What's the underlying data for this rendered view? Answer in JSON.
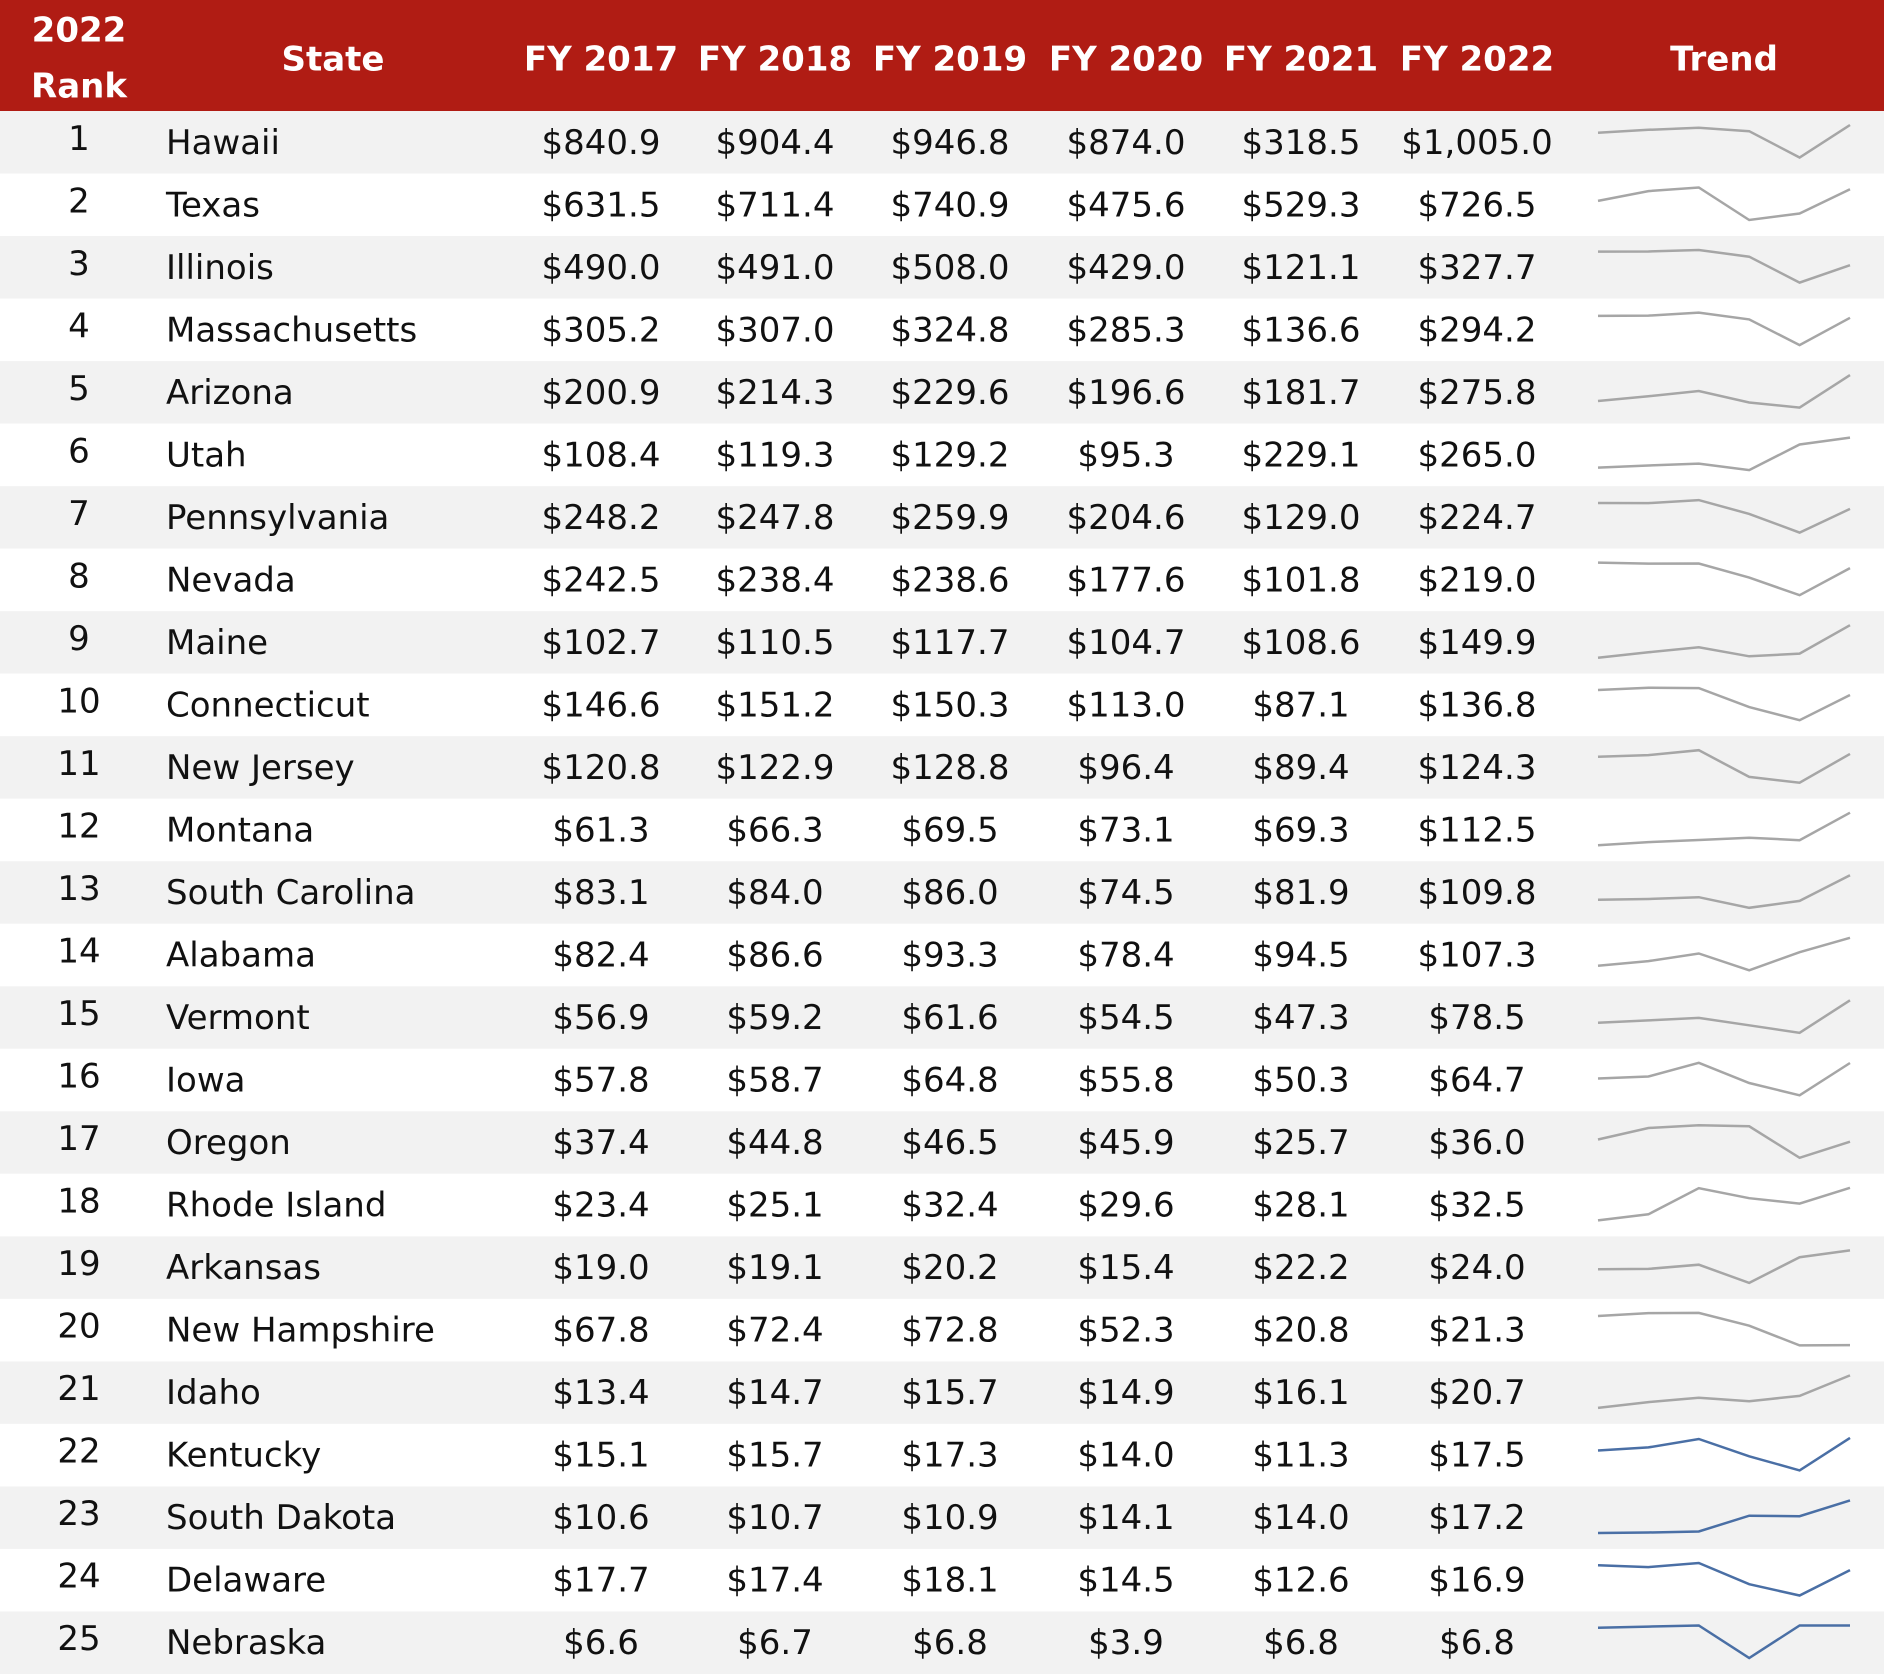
{
  "header": {
    "rank_lines": [
      "2022",
      "Rank"
    ],
    "state": "State",
    "years": [
      "FY 2017",
      "FY 2018",
      "FY 2019",
      "FY 2020",
      "FY 2021",
      "FY 2022"
    ],
    "trend": "Trend"
  },
  "rows": [
    {
      "rank": 1,
      "state": "Hawaii",
      "values": [
        840.9,
        904.4,
        946.8,
        874.0,
        318.5,
        1005.0
      ],
      "value_labels": [
        "$840.9",
        "$904.4",
        "$946.8",
        "$874.0",
        "$318.5",
        "$1,005.0"
      ],
      "trend_color": "#a6a6a6"
    },
    {
      "rank": 2,
      "state": "Texas",
      "values": [
        631.5,
        711.4,
        740.9,
        475.6,
        529.3,
        726.5
      ],
      "value_labels": [
        "$631.5",
        "$711.4",
        "$740.9",
        "$475.6",
        "$529.3",
        "$726.5"
      ],
      "trend_color": "#a6a6a6"
    },
    {
      "rank": 3,
      "state": "Illinois",
      "values": [
        490.0,
        491.0,
        508.0,
        429.0,
        121.1,
        327.7
      ],
      "value_labels": [
        "$490.0",
        "$491.0",
        "$508.0",
        "$429.0",
        "$121.1",
        "$327.7"
      ],
      "trend_color": "#a6a6a6"
    },
    {
      "rank": 4,
      "state": "Massachusetts",
      "values": [
        305.2,
        307.0,
        324.8,
        285.3,
        136.6,
        294.2
      ],
      "value_labels": [
        "$305.2",
        "$307.0",
        "$324.8",
        "$285.3",
        "$136.6",
        "$294.2"
      ],
      "trend_color": "#a6a6a6"
    },
    {
      "rank": 5,
      "state": "Arizona",
      "values": [
        200.9,
        214.3,
        229.6,
        196.6,
        181.7,
        275.8
      ],
      "value_labels": [
        "$200.9",
        "$214.3",
        "$229.6",
        "$196.6",
        "$181.7",
        "$275.8"
      ],
      "trend_color": "#a6a6a6"
    },
    {
      "rank": 6,
      "state": "Utah",
      "values": [
        108.4,
        119.3,
        129.2,
        95.3,
        229.1,
        265.0
      ],
      "value_labels": [
        "$108.4",
        "$119.3",
        "$129.2",
        "$95.3",
        "$229.1",
        "$265.0"
      ],
      "trend_color": "#a6a6a6"
    },
    {
      "rank": 7,
      "state": "Pennsylvania",
      "values": [
        248.2,
        247.8,
        259.9,
        204.6,
        129.0,
        224.7
      ],
      "value_labels": [
        "$248.2",
        "$247.8",
        "$259.9",
        "$204.6",
        "$129.0",
        "$224.7"
      ],
      "trend_color": "#a6a6a6"
    },
    {
      "rank": 8,
      "state": "Nevada",
      "values": [
        242.5,
        238.4,
        238.6,
        177.6,
        101.8,
        219.0
      ],
      "value_labels": [
        "$242.5",
        "$238.4",
        "$238.6",
        "$177.6",
        "$101.8",
        "$219.0"
      ],
      "trend_color": "#a6a6a6"
    },
    {
      "rank": 9,
      "state": "Maine",
      "values": [
        102.7,
        110.5,
        117.7,
        104.7,
        108.6,
        149.9
      ],
      "value_labels": [
        "$102.7",
        "$110.5",
        "$117.7",
        "$104.7",
        "$108.6",
        "$149.9"
      ],
      "trend_color": "#a6a6a6"
    },
    {
      "rank": 10,
      "state": "Connecticut",
      "values": [
        146.6,
        151.2,
        150.3,
        113.0,
        87.1,
        136.8
      ],
      "value_labels": [
        "$146.6",
        "$151.2",
        "$150.3",
        "$113.0",
        "$87.1",
        "$136.8"
      ],
      "trend_color": "#a6a6a6"
    },
    {
      "rank": 11,
      "state": "New Jersey",
      "values": [
        120.8,
        122.9,
        128.8,
        96.4,
        89.4,
        124.3
      ],
      "value_labels": [
        "$120.8",
        "$122.9",
        "$128.8",
        "$96.4",
        "$89.4",
        "$124.3"
      ],
      "trend_color": "#a6a6a6"
    },
    {
      "rank": 12,
      "state": "Montana",
      "values": [
        61.3,
        66.3,
        69.5,
        73.1,
        69.3,
        112.5
      ],
      "value_labels": [
        "$61.3",
        "$66.3",
        "$69.5",
        "$73.1",
        "$69.3",
        "$112.5"
      ],
      "trend_color": "#a6a6a6"
    },
    {
      "rank": 13,
      "state": "South Carolina",
      "values": [
        83.1,
        84.0,
        86.0,
        74.5,
        81.9,
        109.8
      ],
      "value_labels": [
        "$83.1",
        "$84.0",
        "$86.0",
        "$74.5",
        "$81.9",
        "$109.8"
      ],
      "trend_color": "#a6a6a6"
    },
    {
      "rank": 14,
      "state": "Alabama",
      "values": [
        82.4,
        86.6,
        93.3,
        78.4,
        94.5,
        107.3
      ],
      "value_labels": [
        "$82.4",
        "$86.6",
        "$93.3",
        "$78.4",
        "$94.5",
        "$107.3"
      ],
      "trend_color": "#a6a6a6"
    },
    {
      "rank": 15,
      "state": "Vermont",
      "values": [
        56.9,
        59.2,
        61.6,
        54.5,
        47.3,
        78.5
      ],
      "value_labels": [
        "$56.9",
        "$59.2",
        "$61.6",
        "$54.5",
        "$47.3",
        "$78.5"
      ],
      "trend_color": "#a6a6a6"
    },
    {
      "rank": 16,
      "state": "Iowa",
      "values": [
        57.8,
        58.7,
        64.8,
        55.8,
        50.3,
        64.7
      ],
      "value_labels": [
        "$57.8",
        "$58.7",
        "$64.8",
        "$55.8",
        "$50.3",
        "$64.7"
      ],
      "trend_color": "#a6a6a6"
    },
    {
      "rank": 17,
      "state": "Oregon",
      "values": [
        37.4,
        44.8,
        46.5,
        45.9,
        25.7,
        36.0
      ],
      "value_labels": [
        "$37.4",
        "$44.8",
        "$46.5",
        "$45.9",
        "$25.7",
        "$36.0"
      ],
      "trend_color": "#a6a6a6"
    },
    {
      "rank": 18,
      "state": "Rhode Island",
      "values": [
        23.4,
        25.1,
        32.4,
        29.6,
        28.1,
        32.5
      ],
      "value_labels": [
        "$23.4",
        "$25.1",
        "$32.4",
        "$29.6",
        "$28.1",
        "$32.5"
      ],
      "trend_color": "#a6a6a6"
    },
    {
      "rank": 19,
      "state": "Arkansas",
      "values": [
        19.0,
        19.1,
        20.2,
        15.4,
        22.2,
        24.0
      ],
      "value_labels": [
        "$19.0",
        "$19.1",
        "$20.2",
        "$15.4",
        "$22.2",
        "$24.0"
      ],
      "trend_color": "#a6a6a6"
    },
    {
      "rank": 20,
      "state": "New Hampshire",
      "values": [
        67.8,
        72.4,
        72.8,
        52.3,
        20.8,
        21.3
      ],
      "value_labels": [
        "$67.8",
        "$72.4",
        "$72.8",
        "$52.3",
        "$20.8",
        "$21.3"
      ],
      "trend_color": "#a6a6a6"
    },
    {
      "rank": 21,
      "state": "Idaho",
      "values": [
        13.4,
        14.7,
        15.7,
        14.9,
        16.1,
        20.7
      ],
      "value_labels": [
        "$13.4",
        "$14.7",
        "$15.7",
        "$14.9",
        "$16.1",
        "$20.7"
      ],
      "trend_color": "#a6a6a6"
    },
    {
      "rank": 22,
      "state": "Kentucky",
      "values": [
        15.1,
        15.7,
        17.3,
        14.0,
        11.3,
        17.5
      ],
      "value_labels": [
        "$15.1",
        "$15.7",
        "$17.3",
        "$14.0",
        "$11.3",
        "$17.5"
      ],
      "trend_color": "#4a6fa5"
    },
    {
      "rank": 23,
      "state": "South Dakota",
      "values": [
        10.6,
        10.7,
        10.9,
        14.1,
        14.0,
        17.2
      ],
      "value_labels": [
        "$10.6",
        "$10.7",
        "$10.9",
        "$14.1",
        "$14.0",
        "$17.2"
      ],
      "trend_color": "#4a6fa5"
    },
    {
      "rank": 24,
      "state": "Delaware",
      "values": [
        17.7,
        17.4,
        18.1,
        14.5,
        12.6,
        16.9
      ],
      "value_labels": [
        "$17.7",
        "$17.4",
        "$18.1",
        "$14.5",
        "$12.6",
        "$16.9"
      ],
      "trend_color": "#4a6fa5"
    },
    {
      "rank": 25,
      "state": "Nebraska",
      "values": [
        6.6,
        6.7,
        6.8,
        3.9,
        6.8,
        6.8
      ],
      "value_labels": [
        "$6.6",
        "$6.7",
        "$6.8",
        "$3.9",
        "$6.8",
        "$6.8"
      ],
      "trend_color": "#4a6fa5"
    }
  ]
}
